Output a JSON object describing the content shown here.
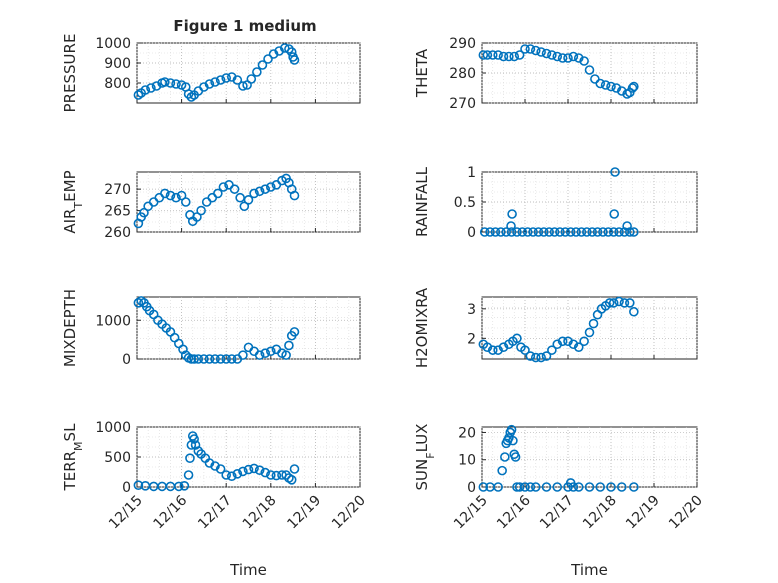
{
  "figure": {
    "title": "Figure 1 medium"
  },
  "chart_data": [
    {
      "type": "scatter",
      "ylabel": "PRESSURE",
      "ylim": [
        700,
        1000
      ],
      "yticks": [
        800,
        900,
        1000
      ],
      "ytick_labels": [
        "800",
        "900",
        "1000"
      ],
      "x": [
        0.05,
        0.15,
        0.3,
        0.5,
        0.7,
        0.9,
        1.0,
        1.2,
        1.4,
        1.6,
        1.75,
        1.85,
        1.95,
        2.05,
        2.2,
        2.4,
        2.6,
        2.8,
        3.0,
        3.2,
        3.4,
        3.6,
        3.8,
        3.95,
        4.1,
        4.3,
        4.5,
        4.7,
        4.9,
        5.1,
        5.3,
        5.45,
        5.55,
        5.6,
        5.65
      ],
      "values": [
        740,
        750,
        765,
        775,
        785,
        800,
        805,
        800,
        795,
        790,
        780,
        745,
        730,
        740,
        760,
        780,
        795,
        805,
        815,
        825,
        830,
        815,
        785,
        790,
        820,
        855,
        890,
        920,
        945,
        960,
        975,
        970,
        955,
        930,
        915
      ]
    },
    {
      "type": "scatter",
      "ylabel": "THETA",
      "ylim": [
        270,
        290
      ],
      "yticks": [
        270,
        280,
        290
      ],
      "ytick_labels": [
        "270",
        "280",
        "290"
      ],
      "x": [
        0.05,
        0.2,
        0.4,
        0.6,
        0.8,
        1.0,
        1.2,
        1.4,
        1.6,
        1.8,
        2.0,
        2.2,
        2.4,
        2.6,
        2.8,
        3.0,
        3.2,
        3.4,
        3.6,
        3.8,
        4.0,
        4.2,
        4.4,
        4.6,
        4.8,
        5.0,
        5.2,
        5.4,
        5.5,
        5.6,
        5.65
      ],
      "values": [
        286,
        286,
        286,
        286,
        285.5,
        285.5,
        285.5,
        286,
        288,
        288,
        287.5,
        287,
        286.5,
        286,
        285.5,
        285,
        285,
        285.5,
        285,
        284,
        281,
        278,
        276.5,
        276,
        275.5,
        275,
        274,
        273,
        273.5,
        275,
        275.5
      ]
    },
    {
      "type": "scatter",
      "ylabel": "AIR_TEMP",
      "ylim": [
        260,
        274
      ],
      "yticks": [
        260,
        265,
        270
      ],
      "ytick_labels": [
        "260",
        "265",
        "270"
      ],
      "x": [
        0.05,
        0.15,
        0.25,
        0.4,
        0.6,
        0.8,
        1.0,
        1.2,
        1.4,
        1.6,
        1.75,
        1.9,
        2.0,
        2.15,
        2.3,
        2.5,
        2.7,
        2.9,
        3.1,
        3.3,
        3.5,
        3.7,
        3.85,
        4.0,
        4.2,
        4.4,
        4.6,
        4.8,
        5.0,
        5.2,
        5.35,
        5.45,
        5.55,
        5.65
      ],
      "values": [
        262,
        263.5,
        264.5,
        266,
        267,
        268,
        269,
        268.5,
        268,
        268.5,
        267,
        264,
        262.5,
        263.5,
        265,
        267,
        268,
        269,
        270.5,
        271,
        270,
        268,
        266,
        267.5,
        269,
        269.5,
        270,
        270.5,
        271,
        272,
        272.5,
        271.5,
        270,
        268.5
      ]
    },
    {
      "type": "scatter",
      "ylabel": "RAINFALL",
      "ylim": [
        0,
        1
      ],
      "yticks": [
        0,
        0.5,
        1
      ],
      "ytick_labels": [
        "0",
        "0.5",
        "1"
      ],
      "x": [
        0.1,
        0.3,
        0.5,
        0.7,
        0.9,
        1.1,
        1.3,
        1.5,
        1.7,
        1.9,
        2.1,
        2.3,
        2.5,
        2.7,
        2.9,
        3.1,
        3.3,
        3.5,
        3.7,
        3.9,
        4.1,
        4.3,
        4.5,
        4.7,
        4.9,
        5.1,
        5.3,
        5.5,
        5.65,
        1.08,
        1.12,
        4.92,
        4.95,
        5.4
      ],
      "values": [
        0,
        0,
        0,
        0,
        0,
        0,
        0,
        0,
        0,
        0,
        0,
        0,
        0,
        0,
        0,
        0,
        0,
        0,
        0,
        0,
        0,
        0,
        0,
        0,
        0,
        0,
        0,
        0,
        0,
        0.1,
        0.3,
        0.3,
        1.0,
        0.1
      ]
    },
    {
      "type": "scatter",
      "ylabel": "MIXDEPTH",
      "ylim": [
        0,
        1600
      ],
      "yticks": [
        0,
        1000
      ],
      "ytick_labels": [
        "0",
        "1000"
      ],
      "x": [
        0.05,
        0.15,
        0.25,
        0.35,
        0.45,
        0.6,
        0.75,
        0.9,
        1.05,
        1.2,
        1.35,
        1.5,
        1.65,
        1.75,
        1.85,
        1.95,
        2.05,
        2.2,
        2.4,
        2.6,
        2.8,
        3.0,
        3.2,
        3.4,
        3.6,
        3.8,
        4.0,
        4.2,
        4.4,
        4.6,
        4.8,
        5.0,
        5.2,
        5.35,
        5.45,
        5.55,
        5.65
      ],
      "values": [
        1450,
        1500,
        1450,
        1350,
        1250,
        1150,
        1000,
        900,
        800,
        700,
        550,
        400,
        250,
        100,
        30,
        0,
        0,
        0,
        0,
        0,
        0,
        0,
        0,
        0,
        0,
        100,
        300,
        200,
        100,
        150,
        200,
        250,
        150,
        100,
        350,
        600,
        700
      ]
    },
    {
      "type": "scatter",
      "ylabel": "H2OMIXRA",
      "ylim": [
        1.3,
        3.4
      ],
      "yticks": [
        2,
        3
      ],
      "ytick_labels": [
        "2",
        "3"
      ],
      "x": [
        0.05,
        0.2,
        0.4,
        0.6,
        0.8,
        1.0,
        1.15,
        1.3,
        1.45,
        1.6,
        1.8,
        2.0,
        2.2,
        2.4,
        2.6,
        2.8,
        3.0,
        3.2,
        3.4,
        3.6,
        3.8,
        4.0,
        4.15,
        4.3,
        4.45,
        4.6,
        4.75,
        4.9,
        5.1,
        5.3,
        5.5,
        5.65
      ],
      "values": [
        1.8,
        1.7,
        1.6,
        1.6,
        1.7,
        1.8,
        1.9,
        2.0,
        1.7,
        1.6,
        1.4,
        1.35,
        1.35,
        1.4,
        1.6,
        1.8,
        1.9,
        1.9,
        1.8,
        1.7,
        1.9,
        2.2,
        2.5,
        2.8,
        3.0,
        3.1,
        3.2,
        3.2,
        3.25,
        3.2,
        3.2,
        2.9
      ]
    },
    {
      "type": "scatter",
      "ylabel": "TERR_MSL",
      "ylim": [
        0,
        1000
      ],
      "yticks": [
        0,
        500,
        1000
      ],
      "ytick_labels": [
        "0",
        "500",
        "1000"
      ],
      "x": [
        0.05,
        0.3,
        0.6,
        0.9,
        1.2,
        1.5,
        1.7,
        1.85,
        1.9,
        1.95,
        2.0,
        2.05,
        2.1,
        2.2,
        2.3,
        2.45,
        2.6,
        2.8,
        3.0,
        3.2,
        3.4,
        3.6,
        3.8,
        4.0,
        4.2,
        4.4,
        4.6,
        4.8,
        5.0,
        5.2,
        5.35,
        5.45,
        5.55,
        5.65
      ],
      "values": [
        30,
        20,
        10,
        10,
        10,
        10,
        20,
        200,
        480,
        700,
        850,
        800,
        700,
        600,
        550,
        480,
        400,
        350,
        300,
        200,
        180,
        220,
        260,
        290,
        310,
        280,
        240,
        200,
        190,
        200,
        200,
        150,
        120,
        300
      ]
    },
    {
      "type": "scatter",
      "ylabel": "SUN_FLUX",
      "ylim": [
        0,
        22
      ],
      "yticks": [
        0,
        10,
        20
      ],
      "ytick_labels": [
        "0",
        "10",
        "20"
      ],
      "x": [
        0.05,
        0.3,
        0.6,
        0.75,
        0.85,
        0.9,
        0.95,
        1.0,
        1.05,
        1.1,
        1.15,
        1.2,
        1.25,
        1.3,
        1.4,
        1.6,
        1.8,
        2.0,
        2.4,
        2.8,
        3.2,
        3.3,
        3.4,
        3.6,
        4.0,
        4.4,
        4.8,
        5.2,
        5.65
      ],
      "values": [
        0,
        0,
        0,
        6,
        11,
        16,
        17,
        18,
        20,
        21,
        17,
        12,
        11,
        0,
        0,
        0,
        0,
        0,
        0,
        0,
        0,
        1.5,
        0,
        0,
        0,
        0,
        0,
        0,
        0
      ]
    }
  ],
  "axes": {
    "xlim": [
      0,
      8
    ],
    "xticks": [
      0,
      2,
      4,
      6,
      8
    ],
    "xtick_labels": [
      "12/15",
      "12/16",
      "12/17",
      "12/18",
      "12/19",
      "12/20"
    ],
    "xtick_positions": [
      0,
      1.6,
      3.2,
      4.8,
      6.4,
      8
    ],
    "xlabel": "Time"
  },
  "ylabel_parts": {
    "AIR_TEMP": [
      "AIR",
      "T",
      "EMP"
    ],
    "TERR_MSL": [
      "TERR",
      "M",
      "SL"
    ],
    "SUN_FLUX": [
      "SUN",
      "F",
      "LUX"
    ]
  }
}
